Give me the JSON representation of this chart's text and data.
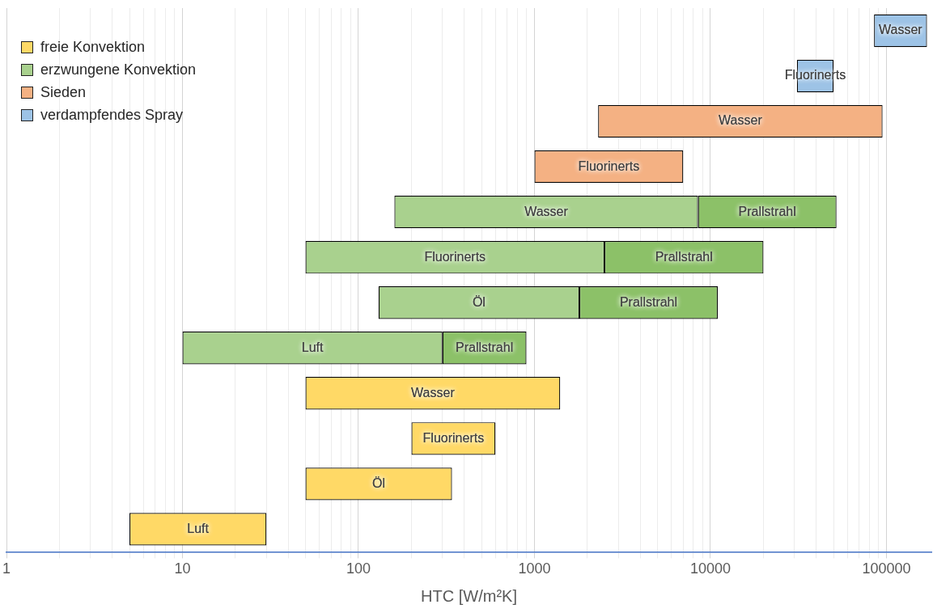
{
  "chart_data": {
    "type": "bar",
    "orientation": "horizontal",
    "xlabel": "HTC [W/m²K]",
    "log": "x",
    "grid": "x",
    "legend": "top left",
    "tick_labels": "x",
    "categories": [
      null,
      null,
      null,
      null,
      null,
      null,
      null,
      null,
      null,
      null,
      null,
      null
    ],
    "xlim": [
      1,
      180000
    ],
    "xticks": [
      1,
      {
        "value": 2,
        "label": null
      },
      {
        "value": 3,
        "label": null
      },
      {
        "value": 4,
        "label": null
      },
      {
        "value": 5,
        "label": null
      },
      {
        "value": 6,
        "label": null
      },
      {
        "value": 7,
        "label": null
      },
      {
        "value": 8,
        "label": null
      },
      {
        "value": 9,
        "label": null
      },
      10,
      {
        "value": 20,
        "label": null
      },
      {
        "value": 30,
        "label": null
      },
      {
        "value": 40,
        "label": null
      },
      {
        "value": 50,
        "label": null
      },
      {
        "value": 60,
        "label": null
      },
      {
        "value": 70,
        "label": null
      },
      {
        "value": 80,
        "label": null
      },
      {
        "value": 90,
        "label": null
      },
      100,
      {
        "value": 200,
        "label": null
      },
      {
        "value": 300,
        "label": null
      },
      {
        "value": 400,
        "label": null
      },
      {
        "value": 500,
        "label": null
      },
      {
        "value": 600,
        "label": null
      },
      {
        "value": 700,
        "label": null
      },
      {
        "value": 800,
        "label": null
      },
      {
        "value": 900,
        "label": null
      },
      1000,
      {
        "value": 2000,
        "label": null
      },
      {
        "value": 3000,
        "label": null
      },
      {
        "value": 4000,
        "label": null
      },
      {
        "value": 5000,
        "label": null
      },
      {
        "value": 6000,
        "label": null
      },
      {
        "value": 7000,
        "label": null
      },
      {
        "value": 8000,
        "label": null
      },
      {
        "value": 9000,
        "label": null
      },
      10000,
      {
        "value": 20000,
        "label": null
      },
      {
        "value": 30000,
        "label": null
      },
      {
        "value": 40000,
        "label": null
      },
      {
        "value": 50000,
        "label": null
      },
      {
        "value": 60000,
        "label": null
      },
      {
        "value": 70000,
        "label": null
      },
      {
        "value": 80000,
        "label": null
      },
      {
        "value": 90000,
        "label": null
      },
      100000
    ],
    "series": [
      {
        "name": "freie Konvektion",
        "color": "#ffd966",
        "base": [
          null,
          null,
          null,
          null,
          null,
          null,
          null,
          null,
          50,
          200,
          50,
          5
        ],
        "values": [
          null,
          null,
          null,
          null,
          null,
          null,
          null,
          null,
          1350,
          400,
          290,
          25
        ],
        "value_labels": [
          null,
          null,
          null,
          null,
          null,
          null,
          null,
          null,
          "Wasser",
          "Fluorinerts",
          "Öl",
          "Luft"
        ]
      },
      {
        "name": "erzwungene Konvektion",
        "color": "#a9d18e",
        "base": [
          null,
          null,
          null,
          null,
          160,
          50,
          130,
          10,
          null,
          null,
          null,
          null
        ],
        "values": [
          null,
          null,
          null,
          null,
          8340,
          2450,
          1670,
          290,
          null,
          null,
          null,
          null
        ],
        "value_labels": [
          null,
          null,
          null,
          null,
          "Wasser",
          "Fluorinerts",
          "Öl",
          "Luft",
          null,
          null,
          null,
          null
        ]
      },
      {
        "color": "#8cc168",
        "base": [
          null,
          null,
          null,
          null,
          8500,
          2500,
          1800,
          300,
          null,
          null,
          null,
          null
        ],
        "values": [
          null,
          null,
          null,
          null,
          43500,
          17500,
          9200,
          600,
          null,
          null,
          null,
          null
        ],
        "value_labels": [
          null,
          null,
          null,
          null,
          "Prallstrahl",
          "Prallstrahl",
          "Prallstrahl",
          "Prallstrahl",
          null,
          null,
          null,
          null
        ]
      },
      {
        "name": "Sieden",
        "color": "#f4b183",
        "base": [
          null,
          null,
          2300,
          1000,
          null,
          null,
          null,
          null,
          null,
          null,
          null,
          null
        ],
        "values": [
          null,
          null,
          92700,
          6000,
          null,
          null,
          null,
          null,
          null,
          null,
          null,
          null
        ],
        "value_labels": [
          null,
          null,
          "Wasser",
          "Fluorinerts",
          null,
          null,
          null,
          null,
          null,
          null,
          null,
          null
        ]
      },
      {
        "name": "verdampfendes Spray",
        "color": "#9dc3e6",
        "base": [
          85000,
          31000,
          null,
          null,
          null,
          null,
          null,
          null,
          null,
          null,
          null,
          null
        ],
        "values": [
          85000,
          19000,
          null,
          null,
          null,
          null,
          null,
          null,
          null,
          null,
          null,
          null
        ],
        "value_labels": [
          "Wasser",
          "Fluorinerts",
          null,
          null,
          null,
          null,
          null,
          null,
          null,
          null,
          null,
          null
        ]
      }
    ]
  }
}
